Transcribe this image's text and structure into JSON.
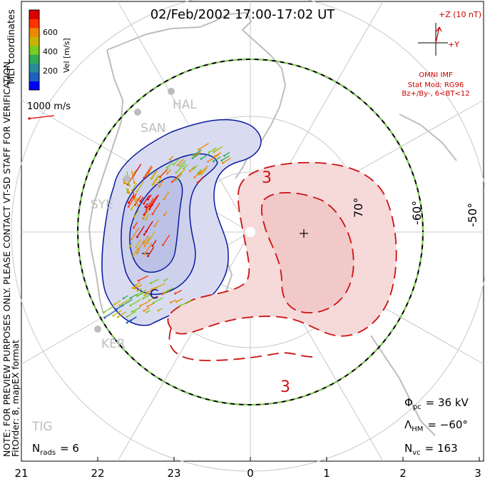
{
  "title": "02/Feb/2002 17:00-17:02 UT",
  "colorbar": {
    "label": "Vel [m/s]",
    "ticks": [
      "600",
      "400",
      "200"
    ],
    "colors": [
      "#0000ff",
      "#1f5fbf",
      "#2a8a9a",
      "#33aa55",
      "#77cc22",
      "#c8b400",
      "#ee8800",
      "#ff3300",
      "#dd0000"
    ]
  },
  "coords_label": "MLT coordinates",
  "scale_label": "1000 m/s",
  "imf": {
    "axis_z": "+Z (10 nT)",
    "axis_y": "+Y",
    "source": "OMNI IMF",
    "model": "Stat Mod: RG96",
    "condition": "Bz+/By-, 6<BT<12"
  },
  "stations": [
    "HAL",
    "SAN",
    "SYE",
    "KER",
    "TIG"
  ],
  "lat_labels": [
    "70°",
    "-60°",
    "-50°"
  ],
  "contour_labels": [
    "3",
    "3",
    "+"
  ],
  "note_lines": [
    "NOTE: FOR PREVIEW PURPOSES ONLY. PLEASE CONTACT VT-SD STAFF FOR VERIFICATION.",
    "FitOrder: 8, mapEX format"
  ],
  "stats": {
    "nrads": "Nₐₒₒₛ",
    "nrads_sym": "N",
    "nrads_sub": "rads",
    "nrads_value": "= 6",
    "phi_sym": "Φ",
    "phi_sub": "pc",
    "phi_value": "=  36 kV",
    "lambda_sym": "Λ",
    "lambda_sub": "HM",
    "lambda_value": "= −60°",
    "nvc_sym": "N",
    "nvc_sub": "vc",
    "nvc_value": "= 163"
  },
  "mlt_ticks": [
    "21",
    "22",
    "23",
    "0",
    "1",
    "2",
    "3"
  ],
  "colors": {
    "negative_fill": "#d9dcf0",
    "negative_line": "#0a1aa0",
    "positive_fill": "#f6d9d9",
    "positive_line": "#cc1111",
    "grid": "#c8c8c8",
    "coast": "#bdbdbd",
    "text_red": "#cc0000"
  }
}
